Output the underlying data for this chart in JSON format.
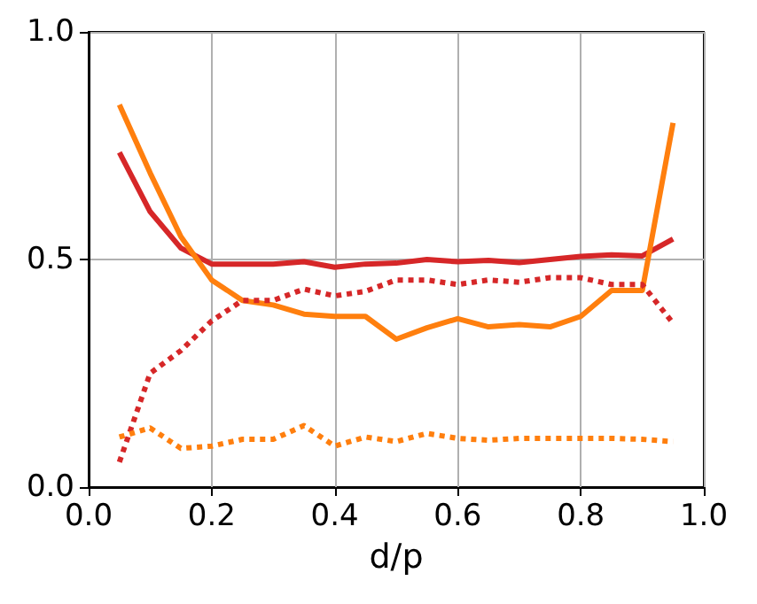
{
  "chart_data": {
    "type": "line",
    "xlabel": "d/p",
    "x": [
      0.05,
      0.1,
      0.15,
      0.2,
      0.25,
      0.3,
      0.35,
      0.4,
      0.45,
      0.5,
      0.55,
      0.6,
      0.65,
      0.7,
      0.75,
      0.8,
      0.85,
      0.9,
      0.95
    ],
    "series": [
      {
        "color": "#d62728",
        "line_style": "solid",
        "values": [
          0.735,
          0.605,
          0.525,
          0.49,
          0.49,
          0.49,
          0.495,
          0.483,
          0.49,
          0.492,
          0.5,
          0.495,
          0.498,
          0.493,
          0.5,
          0.507,
          0.51,
          0.508,
          0.545
        ]
      },
      {
        "color": "#ff7f0e",
        "line_style": "solid",
        "values": [
          0.84,
          0.69,
          0.55,
          0.455,
          0.41,
          0.4,
          0.38,
          0.375,
          0.375,
          0.325,
          0.35,
          0.37,
          0.352,
          0.357,
          0.352,
          0.375,
          0.432,
          0.432,
          0.8
        ]
      },
      {
        "color": "#d62728",
        "line_style": "dotted",
        "values": [
          0.055,
          0.25,
          0.3,
          0.365,
          0.41,
          0.41,
          0.435,
          0.42,
          0.43,
          0.455,
          0.455,
          0.445,
          0.455,
          0.45,
          0.46,
          0.46,
          0.445,
          0.445,
          0.36
        ]
      },
      {
        "color": "#ff7f0e",
        "line_style": "dotted",
        "values": [
          0.11,
          0.13,
          0.085,
          0.09,
          0.105,
          0.105,
          0.135,
          0.09,
          0.11,
          0.1,
          0.118,
          0.107,
          0.103,
          0.107,
          0.107,
          0.107,
          0.107,
          0.105,
          0.1
        ]
      }
    ],
    "xlim": [
      0,
      1
    ],
    "xticks": [
      {
        "value": 0,
        "label": "0.0"
      },
      {
        "value": 0.2,
        "label": "0.2"
      },
      {
        "value": 0.4,
        "label": "0.4"
      },
      {
        "value": 0.6,
        "label": "0.6"
      },
      {
        "value": 0.8,
        "label": "0.8"
      },
      {
        "value": 1,
        "label": "1.0"
      }
    ],
    "ylim": [
      0,
      1
    ],
    "yticks": [
      {
        "value": 0,
        "label": "0.0"
      },
      {
        "value": 0.5,
        "label": "0.5"
      },
      {
        "value": 1,
        "label": "1.0"
      }
    ],
    "grid": true,
    "marker": "none"
  }
}
